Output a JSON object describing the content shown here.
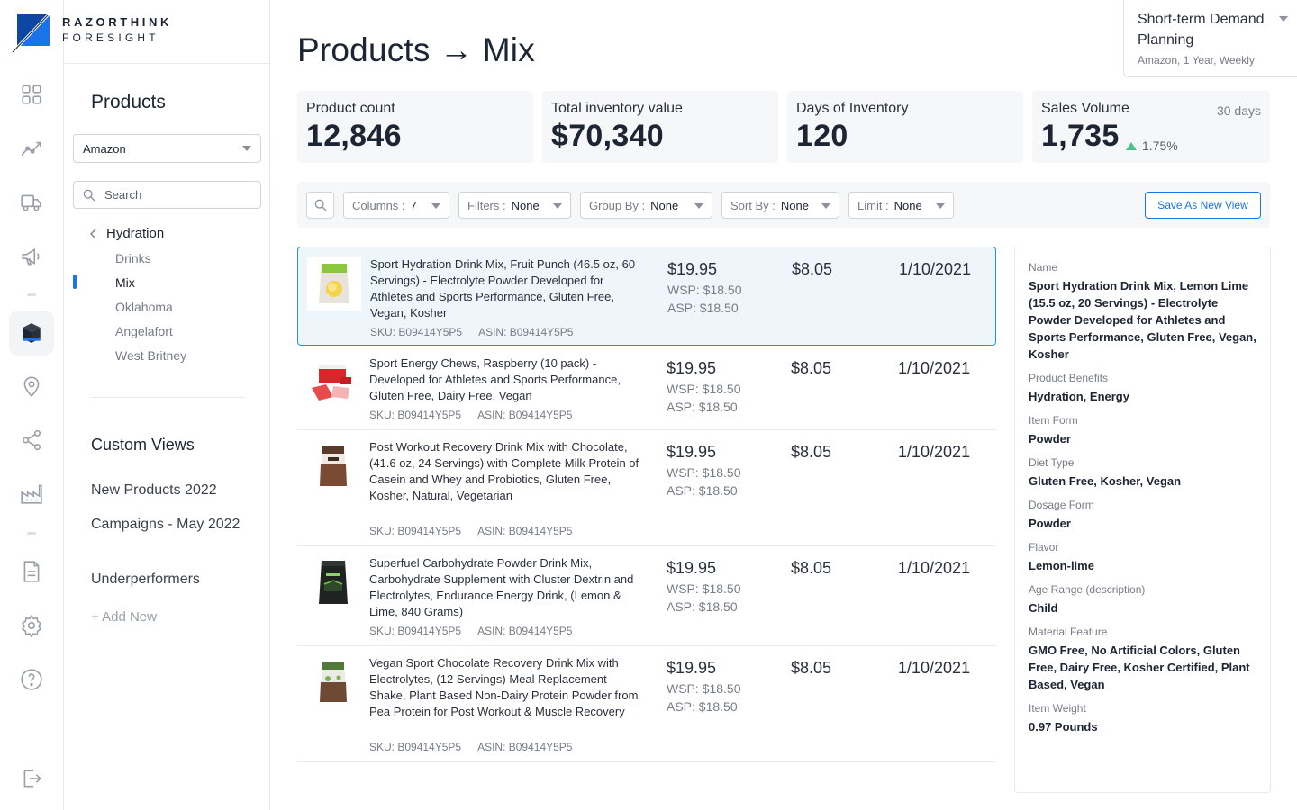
{
  "brand": {
    "line1": "RAZORTHINK",
    "line2": "FORESIGHT"
  },
  "rail": {
    "icons": [
      "dashboard-icon",
      "trend-icon",
      "truck-icon",
      "megaphone-icon",
      "box-icon",
      "location-pin-icon",
      "share-icon",
      "factory-icon",
      "document-icon",
      "gear-icon",
      "help-icon",
      "logout-icon"
    ],
    "active": "box-icon",
    "accent": "#1a73e8"
  },
  "sidebar": {
    "title": "Products",
    "channel": "Amazon",
    "search_placeholder": "Search",
    "tree_parent": "Hydration",
    "tree_items": [
      "Drinks",
      "Mix",
      "Oklahoma",
      "Angelafort",
      "West Britney"
    ],
    "active_item": "Mix",
    "custom_views_title": "Custom Views",
    "custom_views": [
      "New Products 2022",
      "Campaigns - May 2022",
      "Underperformers"
    ],
    "add_new": "+ Add New"
  },
  "page": {
    "title": "Products → Mix"
  },
  "context": {
    "title": "Short-term Demand Planning",
    "subtitle": "Amazon, 1 Year, Weekly"
  },
  "kpis": [
    {
      "label": "Product count",
      "value": "12,846"
    },
    {
      "label": "Total inventory value",
      "value": "$70,340"
    },
    {
      "label": "Days of Inventory",
      "value": "120"
    },
    {
      "label": "Sales Volume",
      "value": "1,735",
      "period": "30 days",
      "delta": "1.75%",
      "delta_color": "#4cc38a"
    }
  ],
  "toolbar": {
    "columns_label": "Columns :",
    "columns_value": "7",
    "filters_label": "Filters :",
    "filters_value": "None",
    "groupby_label": "Group By :",
    "groupby_value": "None",
    "sortby_label": "Sort By :",
    "sortby_value": "None",
    "limit_label": "Limit :",
    "limit_value": "None",
    "save_label": "Save As New View"
  },
  "products": [
    {
      "name": "Sport Hydration Drink Mix, Fruit Punch (46.5 oz, 60 Servings) - Electrolyte Powder Developed for Athletes and Sports Performance, Gluten Free, Vegan, Kosher",
      "sku": "SKU: B09414Y5P5",
      "asin": "ASIN: B09414Y5P5",
      "price": "$19.95",
      "wsp": "WSP: $18.50",
      "asp": "ASP: $18.50",
      "cost": "$8.05",
      "date": "1/10/2021",
      "thumb": "yellow-pouch"
    },
    {
      "name": "Sport Energy Chews, Raspberry (10 pack) - Developed for Athletes and Sports Performance, Gluten Free, Dairy Free, Vegan",
      "sku": "SKU: B09414Y5P5",
      "asin": "ASIN: B09414Y5P5",
      "price": "$19.95",
      "wsp": "WSP: $18.50",
      "asp": "ASP: $18.50",
      "cost": "$8.05",
      "date": "1/10/2021",
      "thumb": "red-box"
    },
    {
      "name": "Post Workout Recovery Drink Mix with Chocolate, (41.6 oz, 24 Servings) with Complete Milk Protein of Casein and Whey and Probiotics, Gluten Free, Kosher, Natural, Vegetarian",
      "sku": "SKU: B09414Y5P5",
      "asin": "ASIN: B09414Y5P5",
      "price": "$19.95",
      "wsp": "WSP: $18.50",
      "asp": "ASP: $18.50",
      "cost": "$8.05",
      "date": "1/10/2021",
      "thumb": "brown-pouch"
    },
    {
      "name": "Superfuel Carbohydrate Powder Drink Mix, Carbohydrate Supplement with Cluster Dextrin and Electrolytes, Endurance Energy Drink, (Lemon & Lime, 840 Grams)",
      "sku": "SKU: B09414Y5P5",
      "asin": "ASIN: B09414Y5P5",
      "price": "$19.95",
      "wsp": "WSP: $18.50",
      "asp": "ASP: $18.50",
      "cost": "$8.05",
      "date": "1/10/2021",
      "thumb": "black-pouch"
    },
    {
      "name": "Vegan Sport Chocolate Recovery Drink Mix with Electrolytes, (12 Servings) Meal Replacement Shake, Plant Based Non-Dairy Protein Powder from Pea Protein for Post Workout & Muscle Recovery",
      "sku": "SKU: B09414Y5P5",
      "asin": "ASIN: B09414Y5P5",
      "price": "$19.95",
      "wsp": "WSP: $18.50",
      "asp": "ASP: $18.50",
      "cost": "$8.05",
      "date": "1/10/2021",
      "thumb": "green-pouch"
    }
  ],
  "detail": [
    {
      "label": "Name",
      "value": "Sport Hydration Drink Mix, Lemon Lime (15.5 oz, 20 Servings) - Electrolyte Powder Developed for Athletes and Sports Performance, Gluten Free, Vegan, Kosher"
    },
    {
      "label": "Product Benefits",
      "value": "Hydration, Energy"
    },
    {
      "label": "Item Form",
      "value": "Powder"
    },
    {
      "label": "Diet Type",
      "value": "Gluten Free, Kosher, Vegan"
    },
    {
      "label": "Dosage Form",
      "value": "Powder"
    },
    {
      "label": "Flavor",
      "value": "Lemon-lime"
    },
    {
      "label": "Age Range (description)",
      "value": "Child"
    },
    {
      "label": "Material Feature",
      "value": "GMO Free, No Artificial Colors, Gluten Free, Dairy Free, Kosher Certified, Plant Based, Vegan"
    },
    {
      "label": "Item Weight",
      "value": "0.97 Pounds"
    }
  ]
}
